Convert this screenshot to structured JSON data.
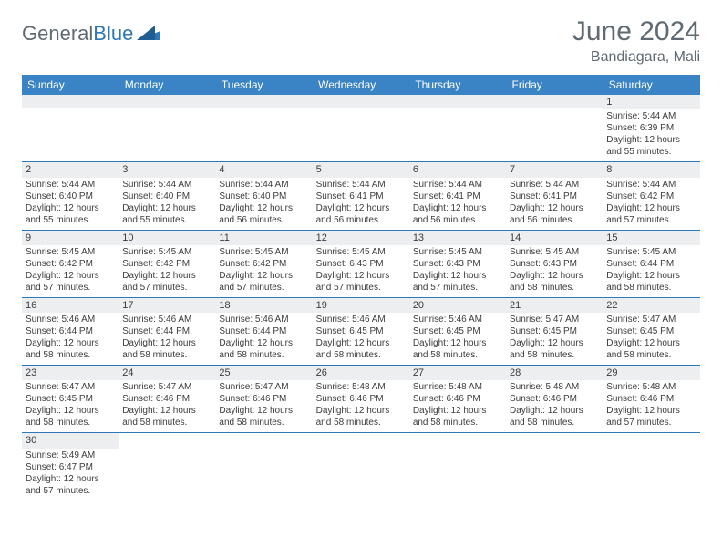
{
  "brand": {
    "part1": "General",
    "part2": "Blue"
  },
  "title": "June 2024",
  "location": "Bandiagara, Mali",
  "colors": {
    "header_bg": "#3a83c4",
    "header_fg": "#ffffff",
    "daynum_bg": "#eceeef",
    "border": "#2f78b7",
    "title_fg": "#5f6a72",
    "text_fg": "#3c3c3c"
  },
  "day_headers": [
    "Sunday",
    "Monday",
    "Tuesday",
    "Wednesday",
    "Thursday",
    "Friday",
    "Saturday"
  ],
  "weeks": [
    [
      null,
      null,
      null,
      null,
      null,
      null,
      {
        "d": "1",
        "sr": "5:44 AM",
        "ss": "6:39 PM",
        "dl": "12 hours and 55 minutes."
      }
    ],
    [
      {
        "d": "2",
        "sr": "5:44 AM",
        "ss": "6:40 PM",
        "dl": "12 hours and 55 minutes."
      },
      {
        "d": "3",
        "sr": "5:44 AM",
        "ss": "6:40 PM",
        "dl": "12 hours and 55 minutes."
      },
      {
        "d": "4",
        "sr": "5:44 AM",
        "ss": "6:40 PM",
        "dl": "12 hours and 56 minutes."
      },
      {
        "d": "5",
        "sr": "5:44 AM",
        "ss": "6:41 PM",
        "dl": "12 hours and 56 minutes."
      },
      {
        "d": "6",
        "sr": "5:44 AM",
        "ss": "6:41 PM",
        "dl": "12 hours and 56 minutes."
      },
      {
        "d": "7",
        "sr": "5:44 AM",
        "ss": "6:41 PM",
        "dl": "12 hours and 56 minutes."
      },
      {
        "d": "8",
        "sr": "5:44 AM",
        "ss": "6:42 PM",
        "dl": "12 hours and 57 minutes."
      }
    ],
    [
      {
        "d": "9",
        "sr": "5:45 AM",
        "ss": "6:42 PM",
        "dl": "12 hours and 57 minutes."
      },
      {
        "d": "10",
        "sr": "5:45 AM",
        "ss": "6:42 PM",
        "dl": "12 hours and 57 minutes."
      },
      {
        "d": "11",
        "sr": "5:45 AM",
        "ss": "6:42 PM",
        "dl": "12 hours and 57 minutes."
      },
      {
        "d": "12",
        "sr": "5:45 AM",
        "ss": "6:43 PM",
        "dl": "12 hours and 57 minutes."
      },
      {
        "d": "13",
        "sr": "5:45 AM",
        "ss": "6:43 PM",
        "dl": "12 hours and 57 minutes."
      },
      {
        "d": "14",
        "sr": "5:45 AM",
        "ss": "6:43 PM",
        "dl": "12 hours and 58 minutes."
      },
      {
        "d": "15",
        "sr": "5:45 AM",
        "ss": "6:44 PM",
        "dl": "12 hours and 58 minutes."
      }
    ],
    [
      {
        "d": "16",
        "sr": "5:46 AM",
        "ss": "6:44 PM",
        "dl": "12 hours and 58 minutes."
      },
      {
        "d": "17",
        "sr": "5:46 AM",
        "ss": "6:44 PM",
        "dl": "12 hours and 58 minutes."
      },
      {
        "d": "18",
        "sr": "5:46 AM",
        "ss": "6:44 PM",
        "dl": "12 hours and 58 minutes."
      },
      {
        "d": "19",
        "sr": "5:46 AM",
        "ss": "6:45 PM",
        "dl": "12 hours and 58 minutes."
      },
      {
        "d": "20",
        "sr": "5:46 AM",
        "ss": "6:45 PM",
        "dl": "12 hours and 58 minutes."
      },
      {
        "d": "21",
        "sr": "5:47 AM",
        "ss": "6:45 PM",
        "dl": "12 hours and 58 minutes."
      },
      {
        "d": "22",
        "sr": "5:47 AM",
        "ss": "6:45 PM",
        "dl": "12 hours and 58 minutes."
      }
    ],
    [
      {
        "d": "23",
        "sr": "5:47 AM",
        "ss": "6:45 PM",
        "dl": "12 hours and 58 minutes."
      },
      {
        "d": "24",
        "sr": "5:47 AM",
        "ss": "6:46 PM",
        "dl": "12 hours and 58 minutes."
      },
      {
        "d": "25",
        "sr": "5:47 AM",
        "ss": "6:46 PM",
        "dl": "12 hours and 58 minutes."
      },
      {
        "d": "26",
        "sr": "5:48 AM",
        "ss": "6:46 PM",
        "dl": "12 hours and 58 minutes."
      },
      {
        "d": "27",
        "sr": "5:48 AM",
        "ss": "6:46 PM",
        "dl": "12 hours and 58 minutes."
      },
      {
        "d": "28",
        "sr": "5:48 AM",
        "ss": "6:46 PM",
        "dl": "12 hours and 58 minutes."
      },
      {
        "d": "29",
        "sr": "5:48 AM",
        "ss": "6:46 PM",
        "dl": "12 hours and 57 minutes."
      }
    ],
    [
      {
        "d": "30",
        "sr": "5:49 AM",
        "ss": "6:47 PM",
        "dl": "12 hours and 57 minutes."
      },
      null,
      null,
      null,
      null,
      null,
      null
    ]
  ],
  "labels": {
    "sunrise": "Sunrise:",
    "sunset": "Sunset:",
    "daylight": "Daylight:"
  }
}
